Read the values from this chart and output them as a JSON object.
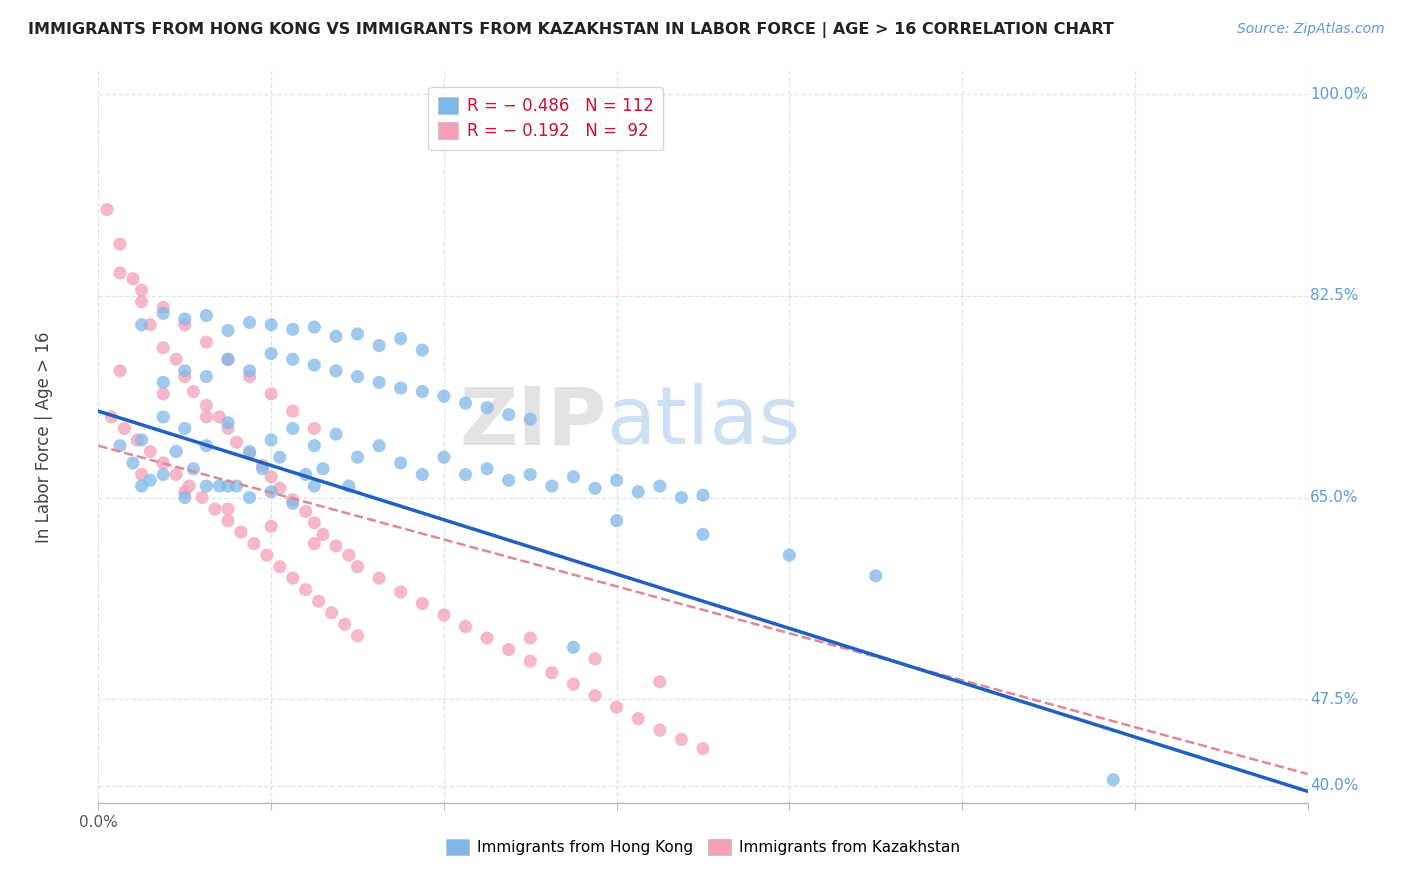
{
  "title": "IMMIGRANTS FROM HONG KONG VS IMMIGRANTS FROM KAZAKHSTAN IN LABOR FORCE | AGE > 16 CORRELATION CHART",
  "source_text": "Source: ZipAtlas.com",
  "ylabel": "In Labor Force | Age > 16",
  "watermark_zip": "ZIP",
  "watermark_atlas": "atlas",
  "legend_blue_label": "R = − 0.486   N = 112",
  "legend_pink_label": "R = − 0.192   N =  92",
  "xmin": 0.0,
  "xmax": 0.28,
  "ymin": 0.385,
  "ymax": 1.02,
  "ytick_vals": [
    1.0,
    0.825,
    0.65,
    0.475,
    0.4
  ],
  "ytick_lbls": [
    "100.0%",
    "82.5%",
    "65.0%",
    "47.5%",
    "40.0%"
  ],
  "xtick_vals": [
    0.0,
    0.04,
    0.08,
    0.12,
    0.16,
    0.2,
    0.24,
    0.28
  ],
  "xtick_lbls": [
    "0.0%",
    "",
    "",
    "",
    "",
    "",
    "",
    ""
  ],
  "blue_line_x": [
    0.0,
    0.28
  ],
  "blue_line_y": [
    0.725,
    0.395
  ],
  "pink_line_x": [
    0.0,
    0.28
  ],
  "pink_line_y": [
    0.695,
    0.41
  ],
  "background_color": "#ffffff",
  "grid_color": "#d8e6f0",
  "blue_scatter_color": "#7fb8e8",
  "pink_scatter_color": "#f4a0b8",
  "blue_line_color": "#2060c0",
  "pink_line_color": "#e08898",
  "right_label_color": "#5b9bd5",
  "source_color": "#5b9bd5",
  "blue_scatter_x": [
    0.005,
    0.008,
    0.01,
    0.012,
    0.015,
    0.018,
    0.02,
    0.022,
    0.025,
    0.028,
    0.03,
    0.032,
    0.035,
    0.038,
    0.04,
    0.042,
    0.045,
    0.048,
    0.05,
    0.052,
    0.055,
    0.058,
    0.06,
    0.065,
    0.07,
    0.075,
    0.08,
    0.085,
    0.09,
    0.095,
    0.1,
    0.105,
    0.11,
    0.115,
    0.12,
    0.125,
    0.13,
    0.135,
    0.14,
    0.01,
    0.015,
    0.02,
    0.025,
    0.03,
    0.035,
    0.04,
    0.045,
    0.05,
    0.015,
    0.02,
    0.025,
    0.03,
    0.035,
    0.04,
    0.045,
    0.05,
    0.055,
    0.06,
    0.065,
    0.07,
    0.075,
    0.08,
    0.085,
    0.09,
    0.095,
    0.1,
    0.01,
    0.02,
    0.03,
    0.04,
    0.05,
    0.06,
    0.07,
    0.015,
    0.025,
    0.035,
    0.045,
    0.055,
    0.065,
    0.075,
    0.12,
    0.14,
    0.16,
    0.18,
    0.235,
    0.11
  ],
  "blue_scatter_y": [
    0.695,
    0.68,
    0.7,
    0.665,
    0.72,
    0.69,
    0.71,
    0.675,
    0.695,
    0.66,
    0.715,
    0.66,
    0.69,
    0.675,
    0.7,
    0.685,
    0.71,
    0.67,
    0.695,
    0.675,
    0.705,
    0.66,
    0.685,
    0.695,
    0.68,
    0.67,
    0.685,
    0.67,
    0.675,
    0.665,
    0.67,
    0.66,
    0.668,
    0.658,
    0.665,
    0.655,
    0.66,
    0.65,
    0.652,
    0.66,
    0.67,
    0.65,
    0.66,
    0.66,
    0.65,
    0.655,
    0.645,
    0.66,
    0.75,
    0.76,
    0.755,
    0.77,
    0.76,
    0.775,
    0.77,
    0.765,
    0.76,
    0.755,
    0.75,
    0.745,
    0.742,
    0.738,
    0.732,
    0.728,
    0.722,
    0.718,
    0.8,
    0.805,
    0.795,
    0.8,
    0.798,
    0.792,
    0.788,
    0.81,
    0.808,
    0.802,
    0.796,
    0.79,
    0.782,
    0.778,
    0.63,
    0.618,
    0.6,
    0.582,
    0.405,
    0.52
  ],
  "pink_scatter_x": [
    0.002,
    0.005,
    0.008,
    0.01,
    0.012,
    0.015,
    0.018,
    0.02,
    0.022,
    0.025,
    0.028,
    0.03,
    0.032,
    0.035,
    0.038,
    0.04,
    0.042,
    0.045,
    0.048,
    0.05,
    0.052,
    0.055,
    0.058,
    0.06,
    0.065,
    0.07,
    0.075,
    0.08,
    0.085,
    0.09,
    0.095,
    0.1,
    0.105,
    0.11,
    0.115,
    0.12,
    0.125,
    0.13,
    0.135,
    0.14,
    0.005,
    0.01,
    0.015,
    0.02,
    0.025,
    0.03,
    0.035,
    0.04,
    0.045,
    0.05,
    0.003,
    0.006,
    0.009,
    0.012,
    0.015,
    0.018,
    0.021,
    0.024,
    0.027,
    0.03,
    0.033,
    0.036,
    0.039,
    0.042,
    0.045,
    0.048,
    0.051,
    0.054,
    0.057,
    0.06,
    0.01,
    0.02,
    0.03,
    0.04,
    0.05,
    0.005,
    0.015,
    0.025,
    0.1,
    0.115,
    0.13
  ],
  "pink_scatter_y": [
    0.9,
    0.87,
    0.84,
    0.82,
    0.8,
    0.78,
    0.77,
    0.755,
    0.742,
    0.73,
    0.72,
    0.71,
    0.698,
    0.688,
    0.678,
    0.668,
    0.658,
    0.648,
    0.638,
    0.628,
    0.618,
    0.608,
    0.6,
    0.59,
    0.58,
    0.568,
    0.558,
    0.548,
    0.538,
    0.528,
    0.518,
    0.508,
    0.498,
    0.488,
    0.478,
    0.468,
    0.458,
    0.448,
    0.44,
    0.432,
    0.845,
    0.83,
    0.815,
    0.8,
    0.785,
    0.77,
    0.755,
    0.74,
    0.725,
    0.71,
    0.72,
    0.71,
    0.7,
    0.69,
    0.68,
    0.67,
    0.66,
    0.65,
    0.64,
    0.63,
    0.62,
    0.61,
    0.6,
    0.59,
    0.58,
    0.57,
    0.56,
    0.55,
    0.54,
    0.53,
    0.67,
    0.655,
    0.64,
    0.625,
    0.61,
    0.76,
    0.74,
    0.72,
    0.528,
    0.51,
    0.49
  ]
}
